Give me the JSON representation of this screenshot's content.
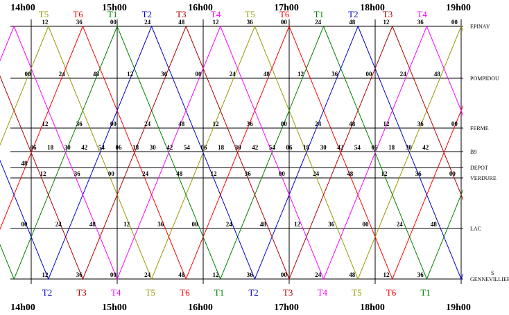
{
  "hours_top": [
    "14h00",
    "15h00",
    "16h00",
    "17h00",
    "18h00",
    "19h00"
  ],
  "hours_bottom": [
    "14h00",
    "15h00",
    "16h00",
    "17h00",
    "18h00",
    "19h00"
  ],
  "trains": [
    {
      "name": "T1",
      "color": "#008000"
    },
    {
      "name": "T2",
      "color": "#0000cc"
    },
    {
      "name": "T3",
      "color": "#b00000"
    },
    {
      "name": "T4",
      "color": "#ff00ff"
    },
    {
      "name": "T5",
      "color": "#999900"
    },
    {
      "name": "T6",
      "color": "#ff0000"
    }
  ],
  "top_train_labels": [
    "T5",
    "T6",
    "T1",
    "T2",
    "T3",
    "T4",
    "T5",
    "T6",
    "T1",
    "T2",
    "T3",
    "T4"
  ],
  "bottom_train_labels": [
    "T2",
    "T3",
    "T4",
    "T5",
    "T6",
    "T1",
    "T2",
    "T3",
    "T4",
    "T5",
    "T6",
    "T1"
  ],
  "stations": [
    {
      "name": "EPINAY",
      "minutes": [
        "12",
        "36",
        "00",
        "24",
        "48",
        "12",
        "36",
        "00",
        "24",
        "48",
        "12",
        "36",
        "00"
      ]
    },
    {
      "name": "POMPIDOU",
      "minutes": [
        "00",
        "24",
        "48",
        "12",
        "36",
        "00",
        "24",
        "48",
        "12",
        "36",
        "00",
        "24",
        "48"
      ]
    },
    {
      "name": "FERME",
      "minutes": [
        "12",
        "36",
        "00",
        "24",
        "48",
        "12",
        "36",
        "00",
        "24",
        "48",
        "12",
        "36",
        "00"
      ]
    },
    {
      "name": "B9",
      "minutes": [
        "06",
        "18",
        "30",
        "42",
        "54",
        "06",
        "18",
        "30",
        "42",
        "54",
        "06",
        "18",
        "30",
        "42",
        "54",
        "06",
        "18",
        "30",
        "42",
        "54",
        "06",
        "18",
        "30",
        "42"
      ]
    },
    {
      "name": "DEPOT",
      "minutes": [
        "48"
      ]
    },
    {
      "name": "VERDURE",
      "minutes": [
        "12",
        "36",
        "00",
        "24",
        "48",
        "12",
        "36",
        "00",
        "24",
        "48",
        "12",
        "36",
        "00"
      ]
    },
    {
      "name": "LAC",
      "minutes": [
        "00",
        "24",
        "48",
        "12",
        "36",
        "00",
        "24",
        "48",
        "12",
        "36",
        "00",
        "24",
        "48"
      ]
    },
    {
      "name": "GENNEVILLIER",
      "prefix": "S",
      "minutes": [
        "12",
        "36",
        "00",
        "24",
        "48",
        "12",
        "36",
        "00",
        "24",
        "48",
        "12",
        "36"
      ]
    }
  ]
}
